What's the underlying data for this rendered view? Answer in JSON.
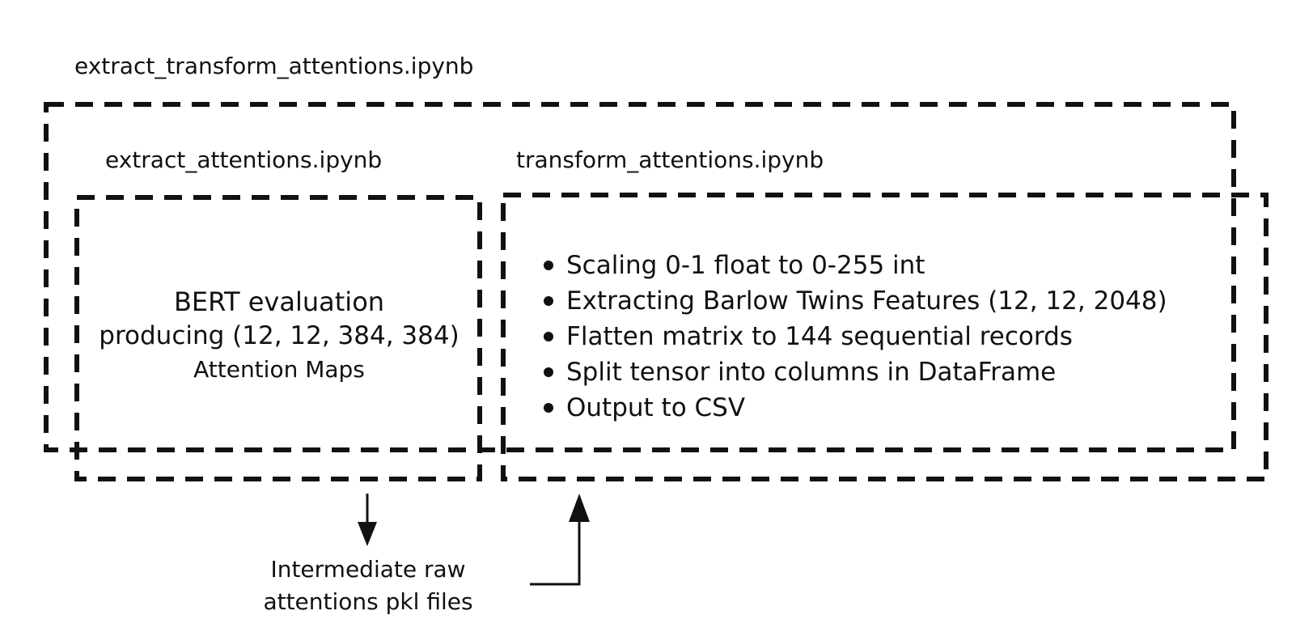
{
  "diagram": {
    "outer_box": {
      "label": "extract_transform_attentions.ipynb"
    },
    "extract_box": {
      "label": "extract_attentions.ipynb",
      "text_lines": [
        "BERT evaluation",
        "producing (12, 12, 384, 384)",
        "Attention Maps"
      ]
    },
    "transform_box": {
      "label": "transform_attentions.ipynb",
      "bullets": [
        "Scaling 0-1 float to 0-255 int",
        "Extracting Barlow Twins Features (12, 12, 2048)",
        "Flatten matrix to 144 sequential records",
        "Split tensor into columns in DataFrame",
        "Output to CSV"
      ]
    },
    "intermediate": {
      "text_lines": [
        "Intermediate raw",
        "attentions pkl files"
      ]
    }
  }
}
